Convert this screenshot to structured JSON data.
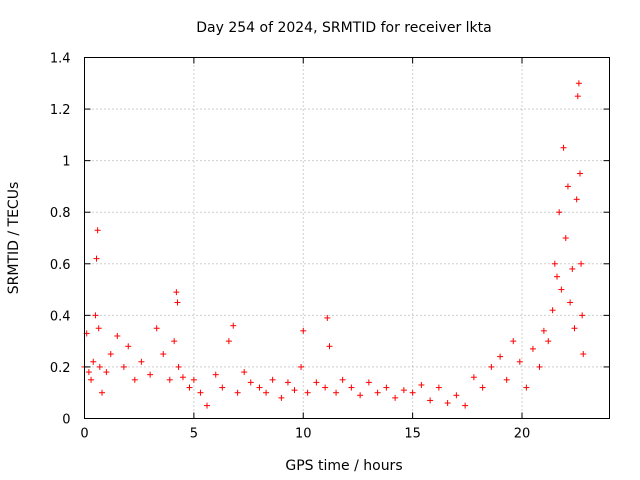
{
  "chart_data": {
    "type": "scatter",
    "title": "Day 254 of 2024, SRMTID for receiver lkta",
    "xlabel": "GPS time / hours",
    "ylabel": "SRMTID / TECUs",
    "xlim": [
      0,
      24
    ],
    "ylim": [
      0,
      1.4
    ],
    "x_ticks": [
      0,
      5,
      10,
      15,
      20
    ],
    "x_tick_labels": [
      "0",
      "5",
      "10",
      "15",
      "20"
    ],
    "y_ticks": [
      0,
      0.2,
      0.4,
      0.6,
      0.8,
      1.0,
      1.2,
      1.4
    ],
    "y_tick_labels": [
      "0",
      "0.2",
      "0.4",
      "0.6",
      "0.8",
      "1",
      "1.2",
      "1.4"
    ],
    "grid": true,
    "marker": "+",
    "color": "#ff0000",
    "series": [
      {
        "name": "SRMTID",
        "x": [
          0.0,
          0.1,
          0.2,
          0.3,
          0.4,
          0.5,
          0.55,
          0.6,
          0.65,
          0.7,
          0.8,
          1.0,
          1.2,
          1.5,
          1.8,
          2.0,
          2.3,
          2.6,
          3.0,
          3.3,
          3.6,
          3.9,
          4.1,
          4.2,
          4.25,
          4.3,
          4.5,
          4.8,
          5.0,
          5.3,
          5.6,
          6.0,
          6.3,
          6.6,
          6.8,
          7.0,
          7.3,
          7.6,
          8.0,
          8.3,
          8.6,
          9.0,
          9.3,
          9.6,
          9.9,
          10.0,
          10.2,
          10.6,
          11.0,
          11.1,
          11.2,
          11.5,
          11.8,
          12.2,
          12.6,
          13.0,
          13.4,
          13.8,
          14.2,
          14.6,
          15.0,
          15.4,
          15.8,
          16.2,
          16.6,
          17.0,
          17.4,
          17.8,
          18.2,
          18.6,
          19.0,
          19.3,
          19.6,
          19.9,
          20.2,
          20.5,
          20.8,
          21.0,
          21.2,
          21.4,
          21.5,
          21.6,
          21.7,
          21.8,
          21.9,
          22.0,
          22.1,
          22.2,
          22.3,
          22.4,
          22.5,
          22.55,
          22.6,
          22.65,
          22.7,
          22.75,
          22.8
        ],
        "y": [
          0.2,
          0.33,
          0.18,
          0.15,
          0.22,
          0.4,
          0.62,
          0.73,
          0.35,
          0.2,
          0.1,
          0.18,
          0.25,
          0.32,
          0.2,
          0.28,
          0.15,
          0.22,
          0.17,
          0.35,
          0.25,
          0.15,
          0.3,
          0.49,
          0.45,
          0.2,
          0.16,
          0.12,
          0.15,
          0.1,
          0.05,
          0.17,
          0.12,
          0.3,
          0.36,
          0.1,
          0.18,
          0.14,
          0.12,
          0.1,
          0.15,
          0.08,
          0.14,
          0.11,
          0.2,
          0.34,
          0.1,
          0.14,
          0.12,
          0.39,
          0.28,
          0.1,
          0.15,
          0.12,
          0.09,
          0.14,
          0.1,
          0.12,
          0.08,
          0.11,
          0.1,
          0.13,
          0.07,
          0.12,
          0.06,
          0.09,
          0.05,
          0.16,
          0.12,
          0.2,
          0.24,
          0.15,
          0.3,
          0.22,
          0.12,
          0.27,
          0.2,
          0.34,
          0.3,
          0.42,
          0.6,
          0.55,
          0.8,
          0.5,
          1.05,
          0.7,
          0.9,
          0.45,
          0.58,
          0.35,
          0.85,
          1.25,
          1.3,
          0.95,
          0.6,
          0.4,
          0.25
        ]
      }
    ]
  }
}
